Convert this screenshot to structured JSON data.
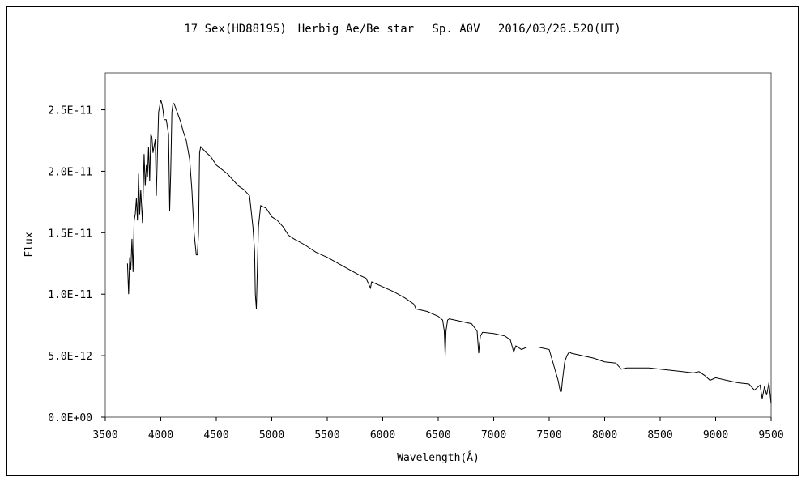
{
  "chart_data": {
    "type": "line",
    "title": "17 Sex(HD88195)　Herbig Ae/Be star　 Sp. A0V　 2016/03/26.520(UT)",
    "xlabel": "Wavelength(Å)",
    "ylabel": "Flux",
    "xlim": [
      3500,
      9500
    ],
    "ylim": [
      0,
      2.8e-11
    ],
    "x_ticks": [
      "3500",
      "4000",
      "4500",
      "5000",
      "5500",
      "6000",
      "6500",
      "7000",
      "7500",
      "8000",
      "8500",
      "9000",
      "9500"
    ],
    "x_tick_values": [
      3500,
      4000,
      4500,
      5000,
      5500,
      6000,
      6500,
      7000,
      7500,
      8000,
      8500,
      9000,
      9500
    ],
    "y_ticks": [
      "0.0E+00",
      "5.0E-12",
      "1.0E-11",
      "1.5E-11",
      "2.0E-11",
      "2.5E-11"
    ],
    "y_tick_values": [
      0,
      5e-12,
      1e-11,
      1.5e-11,
      2e-11,
      2.5e-11
    ],
    "grid": false,
    "line_color": "#000000",
    "series": [
      {
        "x": [
          3700,
          3710,
          3720,
          3730,
          3740,
          3750,
          3760,
          3770,
          3780,
          3790,
          3800,
          3810,
          3820,
          3835,
          3850,
          3860,
          3870,
          3880,
          3890,
          3900,
          3910,
          3920,
          3930,
          3950,
          3960,
          3970,
          3980,
          4000,
          4010,
          4020,
          4030,
          4050,
          4070,
          4080,
          4090,
          4100,
          4110,
          4120,
          4140,
          4160,
          4180,
          4200,
          4230,
          4260,
          4280,
          4300,
          4320,
          4330,
          4340,
          4345,
          4350,
          4360,
          4380,
          4400,
          4450,
          4500,
          4600,
          4700,
          4750,
          4800,
          4830,
          4845,
          4852,
          4861,
          4870,
          4880,
          4900,
          4950,
          5000,
          5050,
          5100,
          5150,
          5200,
          5300,
          5400,
          5500,
          5600,
          5700,
          5800,
          5850,
          5890,
          5900,
          6000,
          6100,
          6200,
          6280,
          6300,
          6400,
          6500,
          6540,
          6555,
          6563,
          6570,
          6585,
          6600,
          6700,
          6800,
          6850,
          6865,
          6870,
          6880,
          6900,
          7000,
          7100,
          7150,
          7180,
          7200,
          7250,
          7300,
          7400,
          7500,
          7580,
          7600,
          7610,
          7620,
          7640,
          7660,
          7680,
          7700,
          7800,
          7900,
          8000,
          8100,
          8150,
          8200,
          8300,
          8400,
          8500,
          8600,
          8700,
          8800,
          8850,
          8900,
          8950,
          9000,
          9100,
          9200,
          9300,
          9350,
          9400,
          9420,
          9440,
          9460,
          9480,
          9500
        ],
        "y": [
          1.25e-11,
          1e-11,
          1.3e-11,
          1.2e-11,
          1.45e-11,
          1.18e-11,
          1.6e-11,
          1.65e-11,
          1.78e-11,
          1.6e-11,
          1.98e-11,
          1.65e-11,
          1.85e-11,
          1.58e-11,
          2.14e-11,
          1.88e-11,
          2.05e-11,
          1.95e-11,
          2.2e-11,
          1.92e-11,
          2.3e-11,
          2.28e-11,
          2.15e-11,
          2.26e-11,
          1.8e-11,
          2.15e-11,
          2.48e-11,
          2.58e-11,
          2.55e-11,
          2.5e-11,
          2.42e-11,
          2.42e-11,
          2.3e-11,
          1.68e-11,
          2e-11,
          2.48e-11,
          2.55e-11,
          2.55e-11,
          2.5e-11,
          2.45e-11,
          2.4e-11,
          2.33e-11,
          2.25e-11,
          2.1e-11,
          1.85e-11,
          1.5e-11,
          1.32e-11,
          1.32e-11,
          1.5e-11,
          1.85e-11,
          2.15e-11,
          2.2e-11,
          2.18e-11,
          2.16e-11,
          2.12e-11,
          2.05e-11,
          1.98e-11,
          1.88e-11,
          1.85e-11,
          1.8e-11,
          1.55e-11,
          1.35e-11,
          1e-11,
          8.8e-12,
          1.2e-11,
          1.55e-11,
          1.72e-11,
          1.7e-11,
          1.63e-11,
          1.6e-11,
          1.55e-11,
          1.48e-11,
          1.45e-11,
          1.4e-11,
          1.34e-11,
          1.3e-11,
          1.25e-11,
          1.2e-11,
          1.15e-11,
          1.13e-11,
          1.05e-11,
          1.1e-11,
          1.06e-11,
          1.02e-11,
          9.7e-12,
          9.2e-12,
          8.8e-12,
          8.6e-12,
          8.2e-12,
          7.9e-12,
          7e-12,
          5e-12,
          7e-12,
          7.9e-12,
          8e-12,
          7.8e-12,
          7.6e-12,
          7e-12,
          5.2e-12,
          5.8e-12,
          6.6e-12,
          6.9e-12,
          6.8e-12,
          6.6e-12,
          6.3e-12,
          5.3e-12,
          5.8e-12,
          5.5e-12,
          5.7e-12,
          5.7e-12,
          5.5e-12,
          3e-12,
          2.1e-12,
          2.1e-12,
          3e-12,
          4.5e-12,
          5e-12,
          5.3e-12,
          5.2e-12,
          5e-12,
          4.8e-12,
          4.5e-12,
          4.4e-12,
          3.9e-12,
          4e-12,
          4e-12,
          4e-12,
          3.9e-12,
          3.8e-12,
          3.7e-12,
          3.6e-12,
          3.7e-12,
          3.4e-12,
          3e-12,
          3.2e-12,
          3e-12,
          2.8e-12,
          2.7e-12,
          2.2e-12,
          2.6e-12,
          1.5e-12,
          2.5e-12,
          1.8e-12,
          2.8e-12,
          1.1e-12
        ]
      }
    ]
  }
}
